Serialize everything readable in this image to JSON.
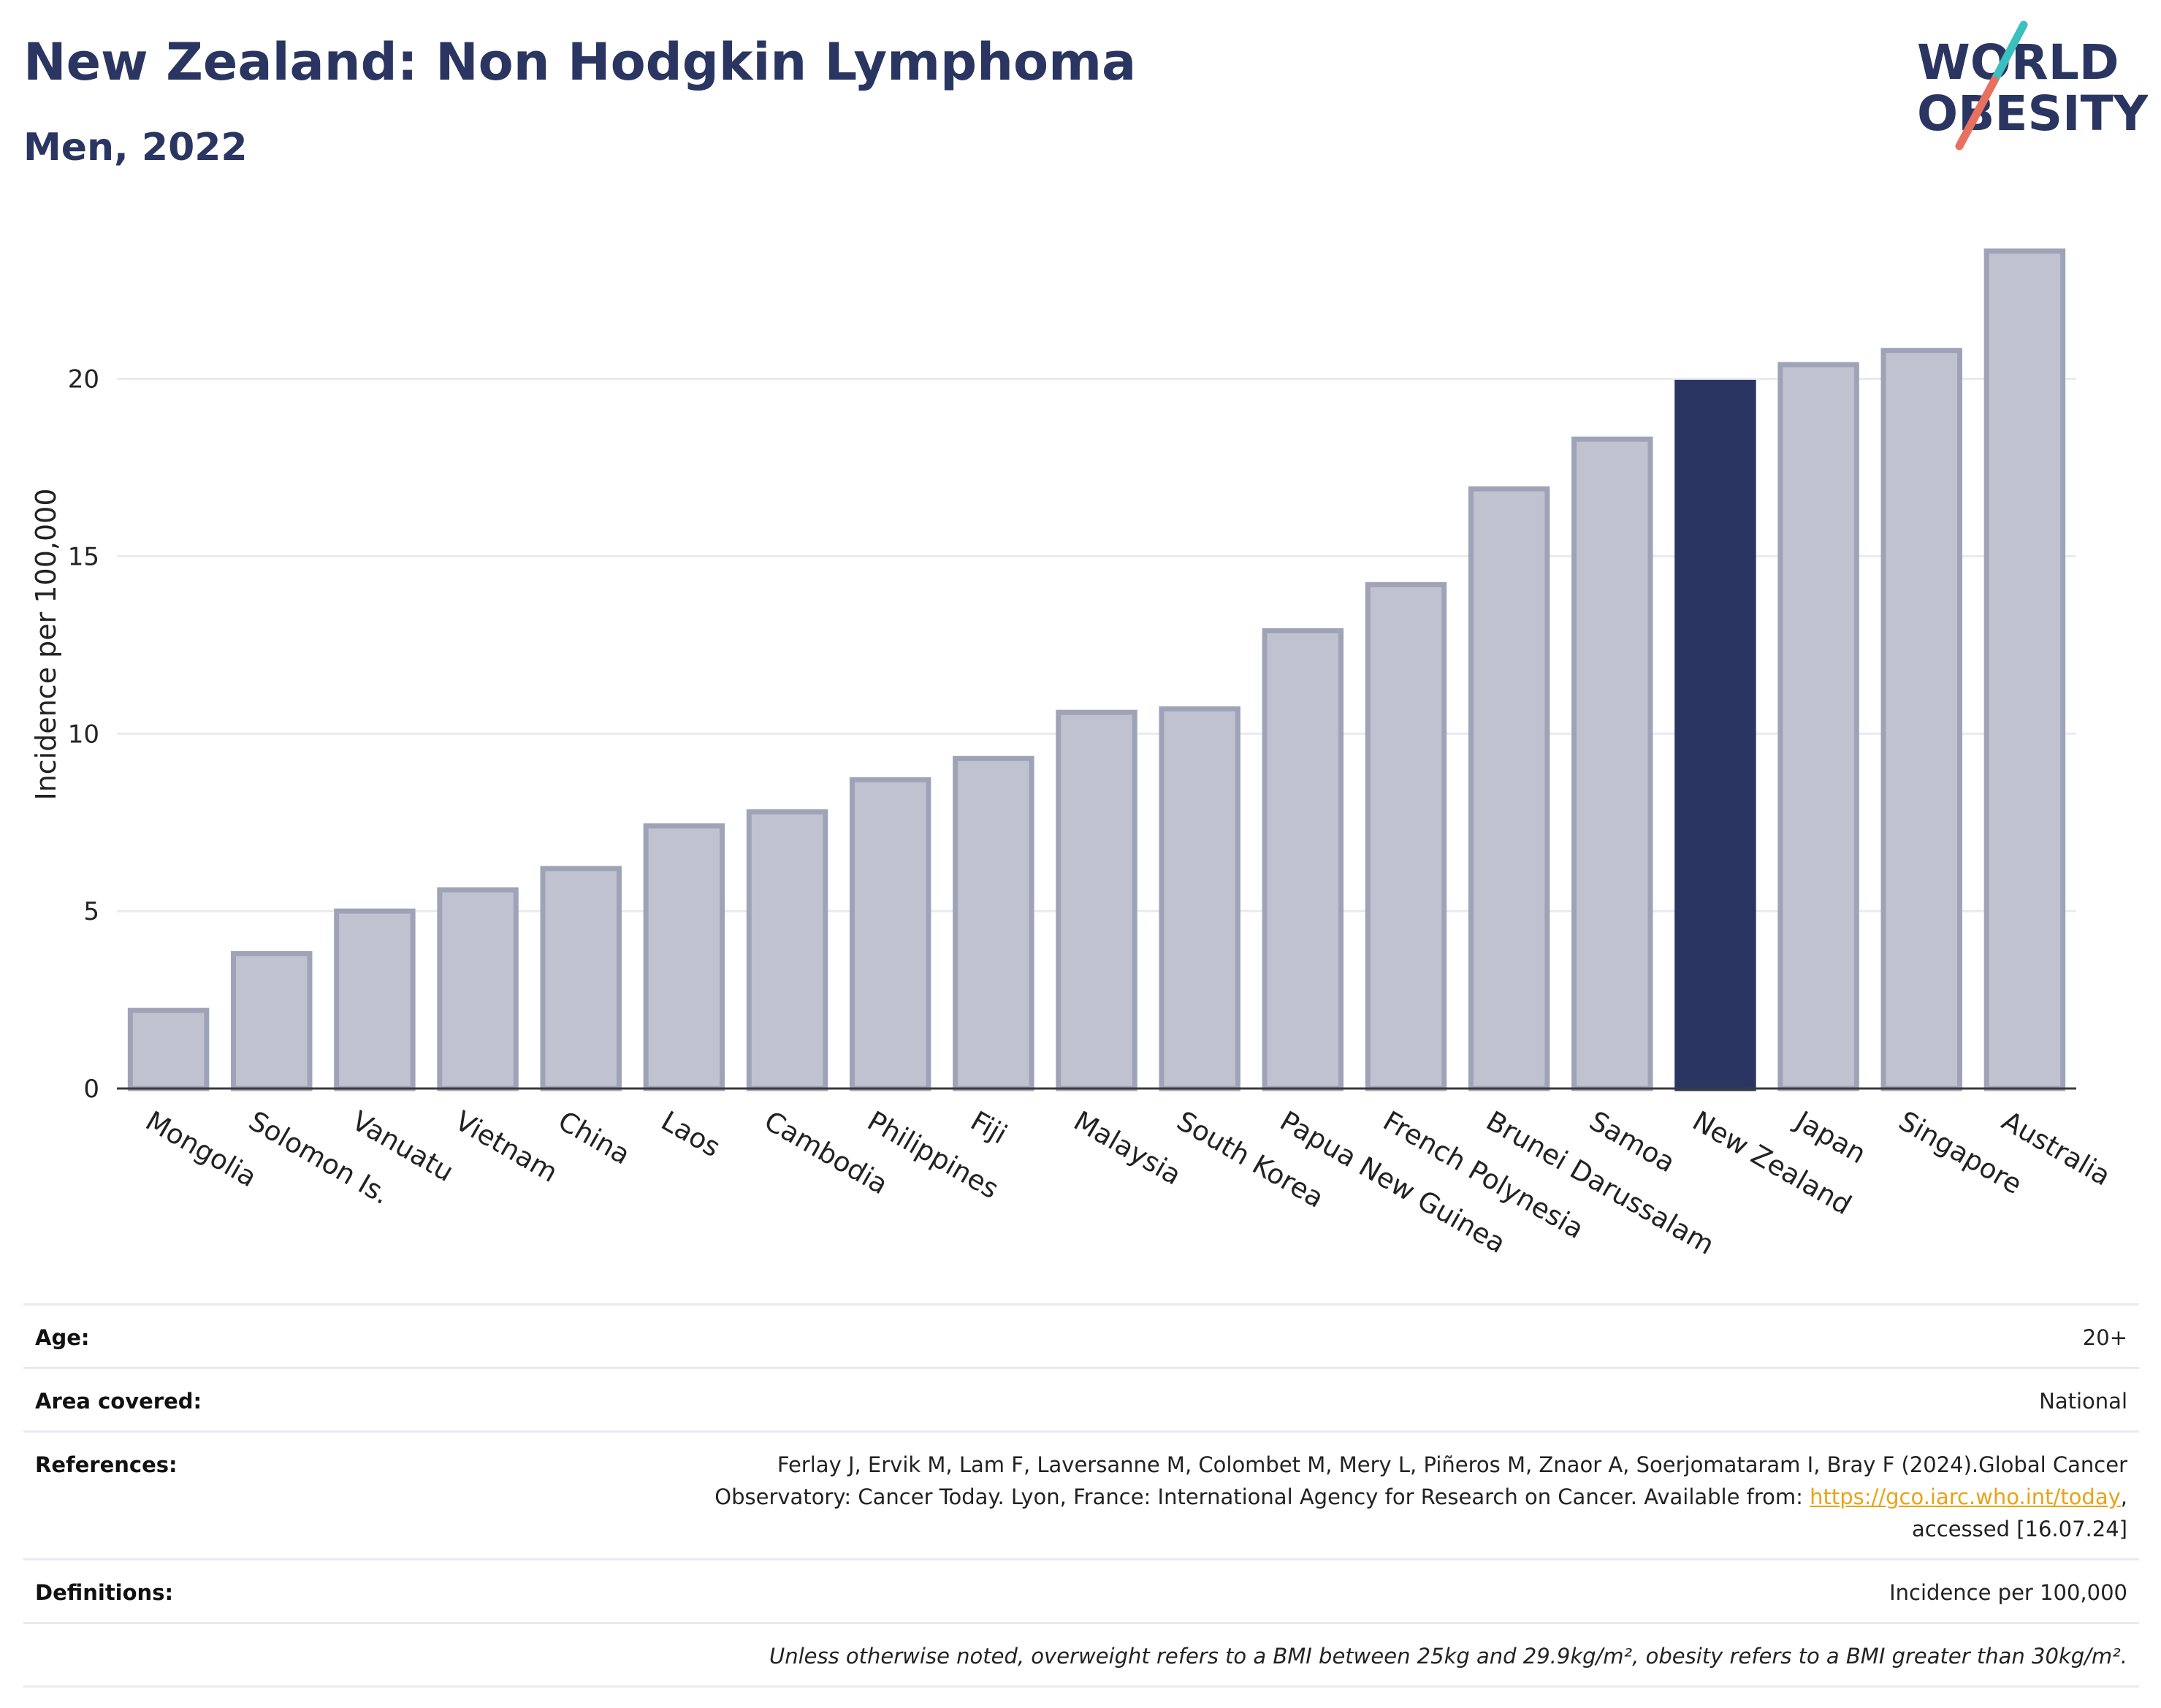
{
  "header": {
    "title": "New Zealand: Non Hodgkin Lymphoma",
    "subtitle": "Men, 2022"
  },
  "logo": {
    "line1": "WORLD",
    "line2": "OBESITY",
    "colors": {
      "text": "#2a3561",
      "slash_teal": "#3bbfbf",
      "slash_coral": "#e8705f"
    }
  },
  "chart_data": {
    "type": "bar",
    "title": "New Zealand: Non Hodgkin Lymphoma",
    "subtitle": "Men, 2022",
    "xlabel": "",
    "ylabel": "Incidence per 100,000",
    "ylim": [
      0,
      24.5
    ],
    "yticks": [
      0,
      5,
      10,
      15,
      20
    ],
    "grid": true,
    "highlight": "New Zealand",
    "colors": {
      "bar": "#c0c3cf",
      "bar_edge": "#9ea3b8",
      "highlight": "#2a3561"
    },
    "categories": [
      "Mongolia",
      "Solomon Is.",
      "Vanuatu",
      "Vietnam",
      "China",
      "Laos",
      "Cambodia",
      "Philippines",
      "Fiji",
      "Malaysia",
      "South Korea",
      "Papua New Guinea",
      "French Polynesia",
      "Brunei Darussalam",
      "Samoa",
      "New Zealand",
      "Japan",
      "Singapore",
      "Australia"
    ],
    "values": [
      2.2,
      3.8,
      5.0,
      5.6,
      6.2,
      7.4,
      7.8,
      8.7,
      9.3,
      10.6,
      10.7,
      12.9,
      14.2,
      16.9,
      18.3,
      19.9,
      20.4,
      20.8,
      23.6
    ]
  },
  "info": {
    "age": {
      "label": "Age:",
      "value": "20+"
    },
    "area": {
      "label": "Area covered:",
      "value": "National"
    },
    "references": {
      "label": "References:",
      "text_before": "Ferlay J, Ervik M, Lam F, Laversanne M, Colombet M, Mery L, Piñeros M, Znaor A, Soerjomataram I, Bray F (2024).Global Cancer Observatory: Cancer Today. Lyon, France: International Agency for Research on Cancer. Available from: ",
      "link": "https://gco.iarc.who.int/today",
      "text_after": ", accessed [16.07.24]"
    },
    "definitions": {
      "label": "Definitions:",
      "value": "Incidence per 100,000"
    },
    "note": "Unless otherwise noted, overweight refers to a BMI between 25kg and 29.9kg/m², obesity refers to a BMI greater than 30kg/m²."
  }
}
